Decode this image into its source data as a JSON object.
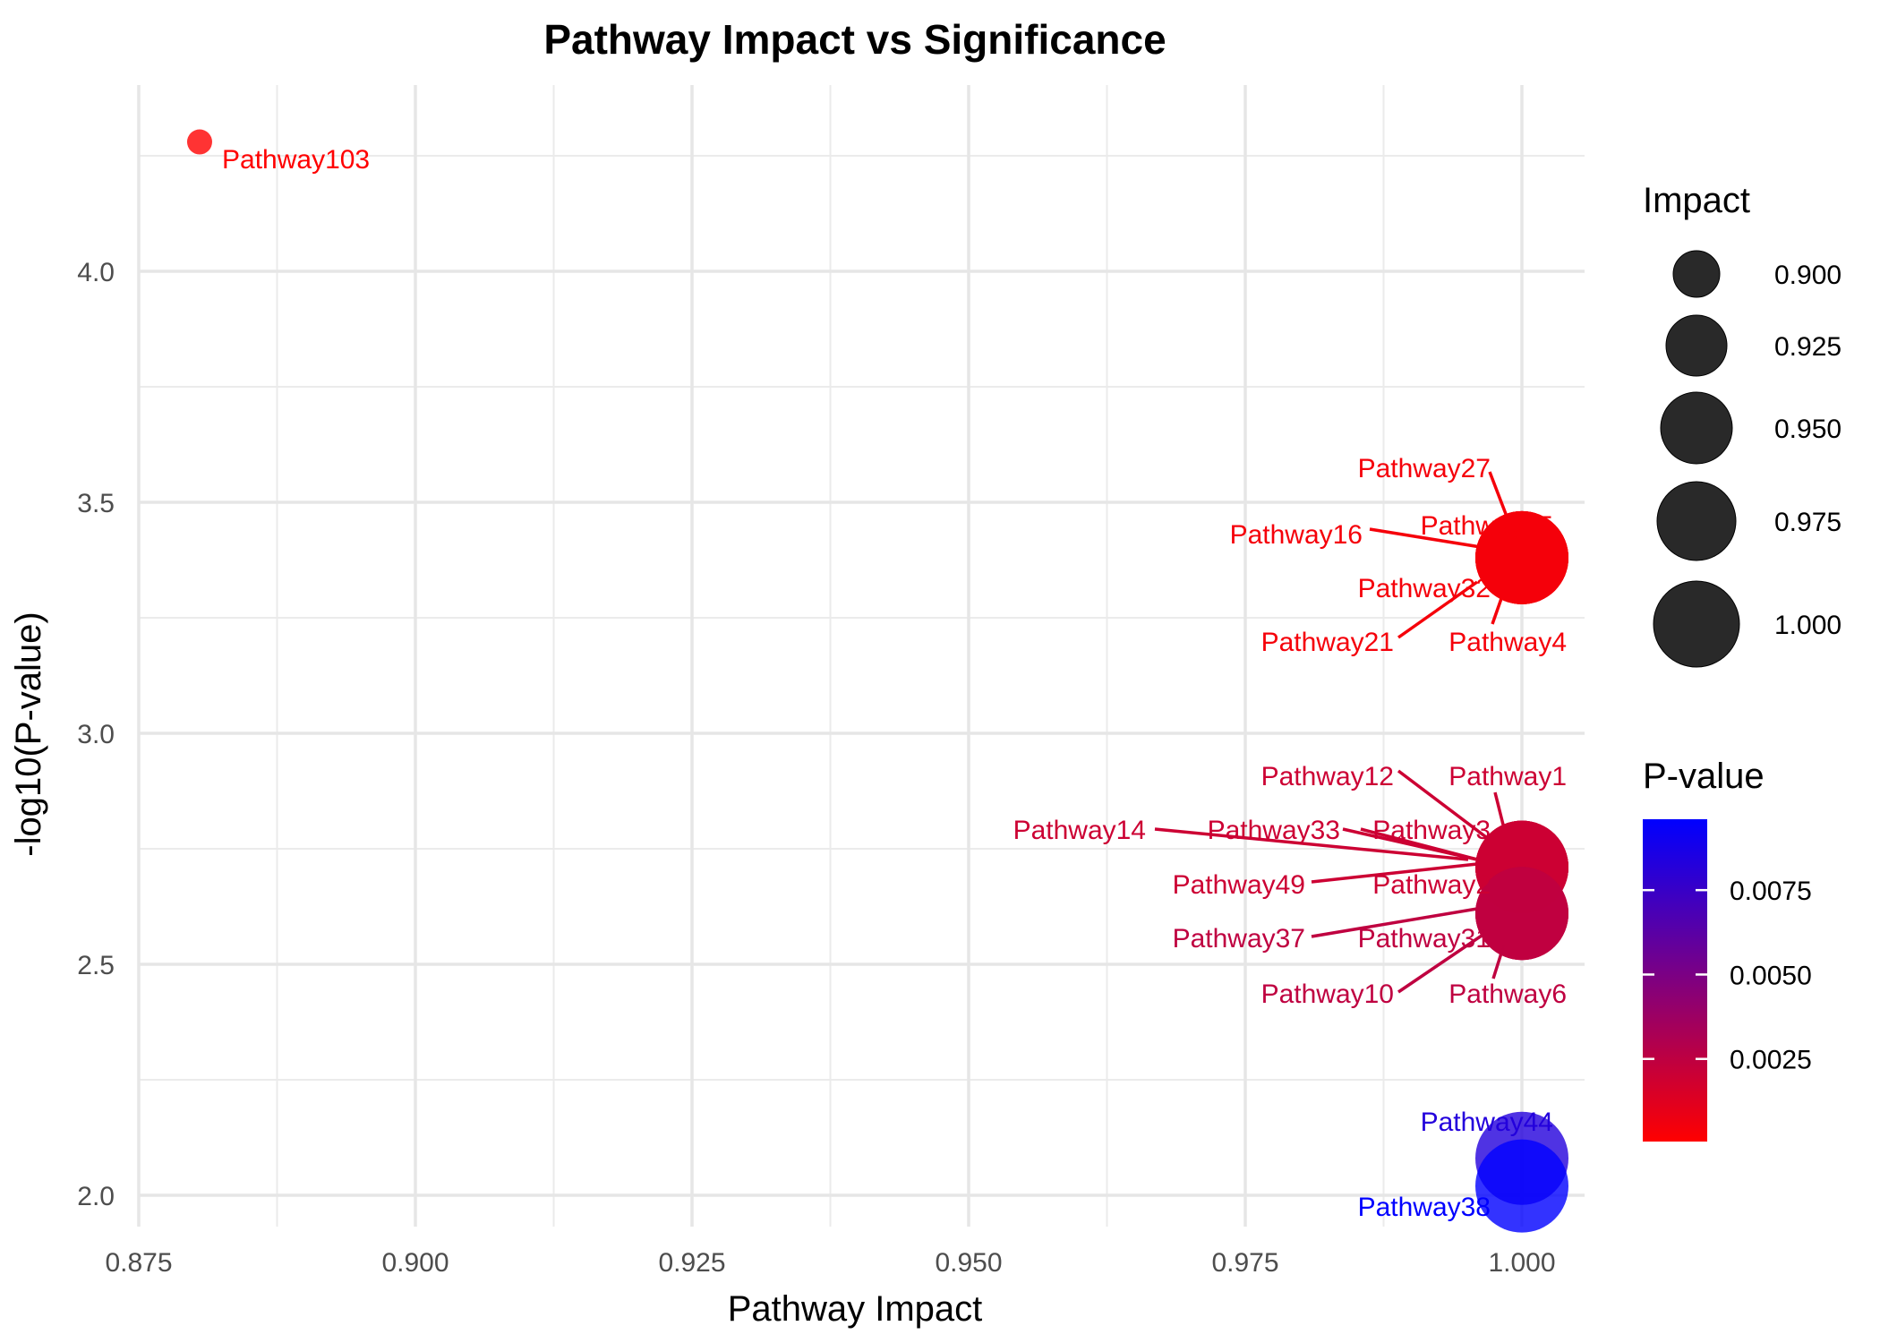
{
  "chart_data": {
    "type": "scatter",
    "title": "Pathway Impact vs Significance",
    "xlabel": "Pathway Impact",
    "ylabel": "-log10(P-value)",
    "xlim": [
      0.875,
      1.0
    ],
    "ylim": [
      2.0,
      4.25
    ],
    "x_ticks": [
      "0.875",
      "0.900",
      "0.925",
      "0.950",
      "0.975",
      "1.000"
    ],
    "y_ticks": [
      "2.0",
      "2.5",
      "3.0",
      "3.5",
      "4.0"
    ],
    "grid": true,
    "size_legend": {
      "title": "Impact",
      "entries": [
        "0.900",
        "0.925",
        "0.950",
        "0.975",
        "1.000"
      ]
    },
    "color_legend": {
      "title": "P-value",
      "ticks": [
        "0.0075",
        "0.0050",
        "0.0025"
      ],
      "low_color": "#ff0000",
      "high_color": "#0000ff"
    },
    "points": [
      {
        "label": "Pathway103",
        "impact": 0.8805,
        "neglog10p": 4.28,
        "pvalue": 5.25e-05
      },
      {
        "label": "Pathway27",
        "impact": 1.0,
        "neglog10p": 3.38,
        "pvalue": 0.000417
      },
      {
        "label": "Pathway15",
        "impact": 1.0,
        "neglog10p": 3.38,
        "pvalue": 0.000417
      },
      {
        "label": "Pathway16",
        "impact": 1.0,
        "neglog10p": 3.38,
        "pvalue": 0.000417
      },
      {
        "label": "Pathway32",
        "impact": 1.0,
        "neglog10p": 3.38,
        "pvalue": 0.000417
      },
      {
        "label": "Pathway21",
        "impact": 1.0,
        "neglog10p": 3.38,
        "pvalue": 0.000417
      },
      {
        "label": "Pathway4",
        "impact": 1.0,
        "neglog10p": 3.38,
        "pvalue": 0.000417
      },
      {
        "label": "Pathway12",
        "impact": 1.0,
        "neglog10p": 2.71,
        "pvalue": 0.00195
      },
      {
        "label": "Pathway1",
        "impact": 1.0,
        "neglog10p": 2.71,
        "pvalue": 0.00195
      },
      {
        "label": "Pathway14",
        "impact": 1.0,
        "neglog10p": 2.71,
        "pvalue": 0.00195
      },
      {
        "label": "Pathway33",
        "impact": 1.0,
        "neglog10p": 2.71,
        "pvalue": 0.00195
      },
      {
        "label": "Pathway3",
        "impact": 1.0,
        "neglog10p": 2.71,
        "pvalue": 0.00195
      },
      {
        "label": "Pathway49",
        "impact": 1.0,
        "neglog10p": 2.71,
        "pvalue": 0.00195
      },
      {
        "label": "Pathway2",
        "impact": 1.0,
        "neglog10p": 2.71,
        "pvalue": 0.00195
      },
      {
        "label": "Pathway37",
        "impact": 1.0,
        "neglog10p": 2.61,
        "pvalue": 0.00245
      },
      {
        "label": "Pathway31",
        "impact": 1.0,
        "neglog10p": 2.61,
        "pvalue": 0.00245
      },
      {
        "label": "Pathway10",
        "impact": 1.0,
        "neglog10p": 2.61,
        "pvalue": 0.00245
      },
      {
        "label": "Pathway6",
        "impact": 1.0,
        "neglog10p": 2.61,
        "pvalue": 0.00245
      },
      {
        "label": "Pathway44",
        "impact": 1.0,
        "neglog10p": 2.08,
        "pvalue": 0.0083
      },
      {
        "label": "Pathway38",
        "impact": 1.0,
        "neglog10p": 2.02,
        "pvalue": 0.0096
      }
    ]
  }
}
